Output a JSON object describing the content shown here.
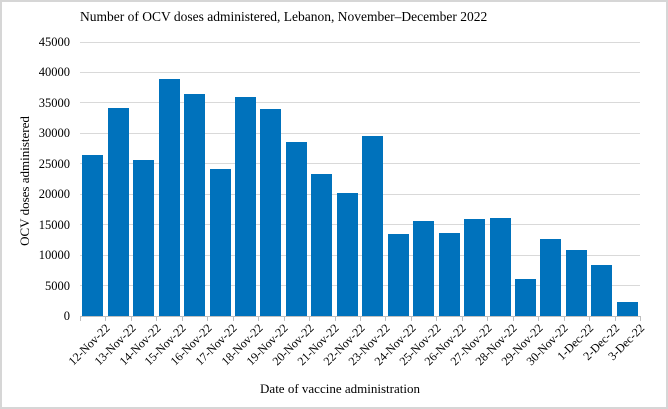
{
  "chart_data": {
    "type": "bar",
    "title": "Number of OCV doses administered, Lebanon, November–December 2022",
    "xlabel": "Date of vaccine administration",
    "ylabel": "OCV doses administered",
    "categories": [
      "12-Nov-22",
      "13-Nov-22",
      "14-Nov-22",
      "15-Nov-22",
      "16-Nov-22",
      "17-Nov-22",
      "18-Nov-22",
      "19-Nov-22",
      "20-Nov-22",
      "21-Nov-22",
      "22-Nov-22",
      "23-Nov-22",
      "24-Nov-22",
      "25-Nov-22",
      "26-Nov-22",
      "27-Nov-22",
      "28-Nov-22",
      "29-Nov-22",
      "30-Nov-22",
      "1-Dec-22",
      "2-Dec-22",
      "3-Dec-22"
    ],
    "values": [
      26500,
      34200,
      25600,
      39000,
      36400,
      24200,
      36000,
      34000,
      28500,
      23300,
      20200,
      29500,
      13400,
      15600,
      13600,
      15900,
      16100,
      6100,
      12700,
      10800,
      8300,
      2300
    ],
    "ylim": [
      0,
      45000
    ],
    "ytick_step": 5000,
    "yticks": [
      0,
      5000,
      10000,
      15000,
      20000,
      25000,
      30000,
      35000,
      40000,
      45000
    ],
    "grid": true,
    "legend": "none",
    "colors": {
      "bar": "#0072BC",
      "gridline": "#D9D9D9",
      "axis": "#BFBFBF",
      "text": "#000000",
      "frame_border": "#D6D6D6",
      "background": "#FFFFFF"
    }
  }
}
